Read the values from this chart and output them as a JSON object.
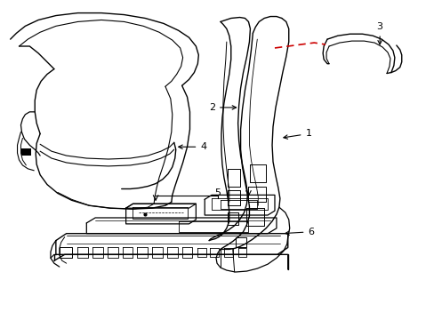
{
  "background_color": "#ffffff",
  "line_color": "#000000",
  "red_dashed_color": "#cc0000",
  "fig_width": 4.89,
  "fig_height": 3.6,
  "dpi": 100
}
